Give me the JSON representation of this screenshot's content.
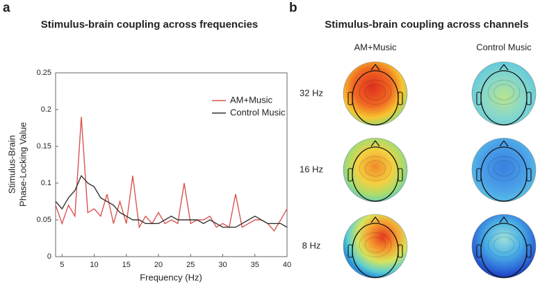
{
  "chart_data": {
    "type": "line",
    "panel_label": "a",
    "title": "Stimulus-brain coupling across frequencies",
    "xlabel": "Frequency (Hz)",
    "ylabel": [
      "Stimulus-Brain",
      "Phase-Locking Value"
    ],
    "x": [
      4,
      5,
      6,
      7,
      8,
      9,
      10,
      11,
      12,
      13,
      14,
      15,
      16,
      17,
      18,
      19,
      20,
      21,
      22,
      23,
      24,
      25,
      26,
      27,
      28,
      29,
      30,
      31,
      32,
      33,
      34,
      35,
      36,
      37,
      38,
      39,
      40
    ],
    "series": [
      {
        "name": "AM+Music",
        "color": "#d9534f",
        "values": [
          0.07,
          0.045,
          0.07,
          0.055,
          0.19,
          0.06,
          0.065,
          0.055,
          0.085,
          0.045,
          0.075,
          0.045,
          0.11,
          0.04,
          0.055,
          0.045,
          0.06,
          0.045,
          0.05,
          0.045,
          0.1,
          0.045,
          0.05,
          0.05,
          0.055,
          0.04,
          0.045,
          0.04,
          0.085,
          0.04,
          0.045,
          0.05,
          0.05,
          0.045,
          0.035,
          0.05,
          0.065
        ]
      },
      {
        "name": "Control Music",
        "color": "#333333",
        "values": [
          0.075,
          0.065,
          0.08,
          0.09,
          0.11,
          0.1,
          0.095,
          0.08,
          0.075,
          0.07,
          0.06,
          0.055,
          0.05,
          0.05,
          0.045,
          0.045,
          0.045,
          0.05,
          0.055,
          0.05,
          0.05,
          0.05,
          0.05,
          0.045,
          0.05,
          0.045,
          0.04,
          0.04,
          0.04,
          0.045,
          0.05,
          0.055,
          0.05,
          0.045,
          0.045,
          0.045,
          0.04
        ]
      }
    ],
    "xlim": [
      4,
      40
    ],
    "xticks": [
      5,
      10,
      15,
      20,
      25,
      30,
      35,
      40
    ],
    "ylim": [
      0,
      0.25
    ],
    "yticks": [
      0,
      0.05,
      0.1,
      0.15,
      0.2,
      0.25
    ],
    "legend": "upper right"
  },
  "panel_b": {
    "panel_label": "b",
    "title": "Stimulus-brain coupling across channels",
    "columns": [
      "AM+Music",
      "Control Music"
    ],
    "rows": [
      "32 Hz",
      "16 Hz",
      "8 Hz"
    ]
  }
}
